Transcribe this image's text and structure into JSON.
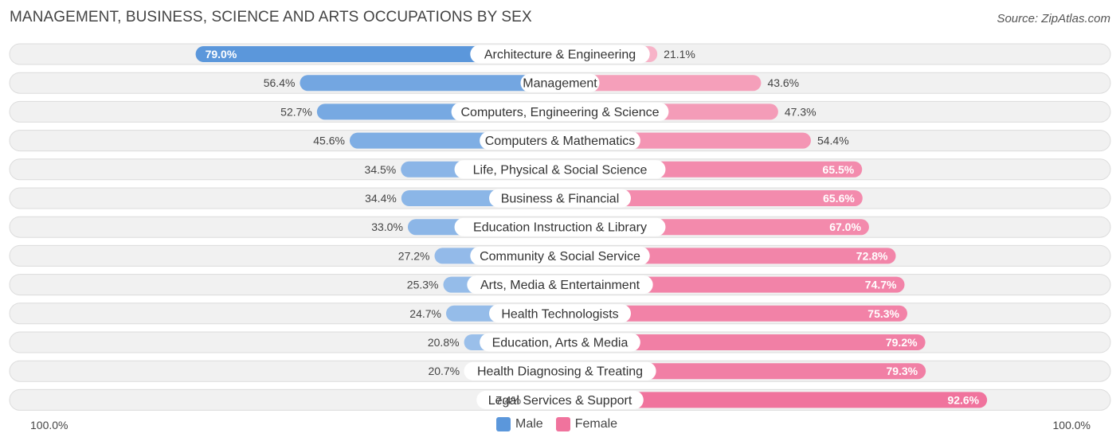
{
  "title": "MANAGEMENT, BUSINESS, SCIENCE AND ARTS OCCUPATIONS BY SEX",
  "source": "Source: ZipAtlas.com",
  "axis": {
    "left_label": "100.0%",
    "right_label": "100.0%"
  },
  "colors": {
    "male_dark": "#5b97db",
    "male_light": "#a8c8ee",
    "female_dark": "#f0739d",
    "female_light": "#f7b3c8",
    "row_bg": "#f1f1f1",
    "row_border": "#dcdcdc"
  },
  "chart_data": {
    "type": "bar",
    "orientation": "horizontal-diverging",
    "xlim": [
      0,
      100
    ],
    "series": [
      {
        "name": "Male",
        "values": [
          79.0,
          56.4,
          52.7,
          45.6,
          34.5,
          34.4,
          33.0,
          27.2,
          25.3,
          24.7,
          20.8,
          20.7,
          7.4
        ]
      },
      {
        "name": "Female",
        "values": [
          21.1,
          43.6,
          47.3,
          54.4,
          65.5,
          65.6,
          67.0,
          72.8,
          74.7,
          75.3,
          79.2,
          79.3,
          92.6
        ]
      }
    ],
    "categories": [
      "Architecture & Engineering",
      "Management",
      "Computers, Engineering & Science",
      "Computers & Mathematics",
      "Life, Physical & Social Science",
      "Business & Financial",
      "Education Instruction & Library",
      "Community & Social Service",
      "Arts, Media & Entertainment",
      "Health Technologists",
      "Education, Arts & Media",
      "Health Diagnosing & Treating",
      "Legal Services & Support"
    ],
    "male_labels": [
      "79.0%",
      "56.4%",
      "52.7%",
      "45.6%",
      "34.5%",
      "34.4%",
      "33.0%",
      "27.2%",
      "25.3%",
      "24.7%",
      "20.8%",
      "20.7%",
      "7.4%"
    ],
    "female_labels": [
      "21.1%",
      "43.6%",
      "47.3%",
      "54.4%",
      "65.5%",
      "65.6%",
      "67.0%",
      "72.8%",
      "74.7%",
      "75.3%",
      "79.2%",
      "79.3%",
      "92.6%"
    ],
    "legend": {
      "position": "bottom-center",
      "items": [
        "Male",
        "Female"
      ]
    }
  }
}
